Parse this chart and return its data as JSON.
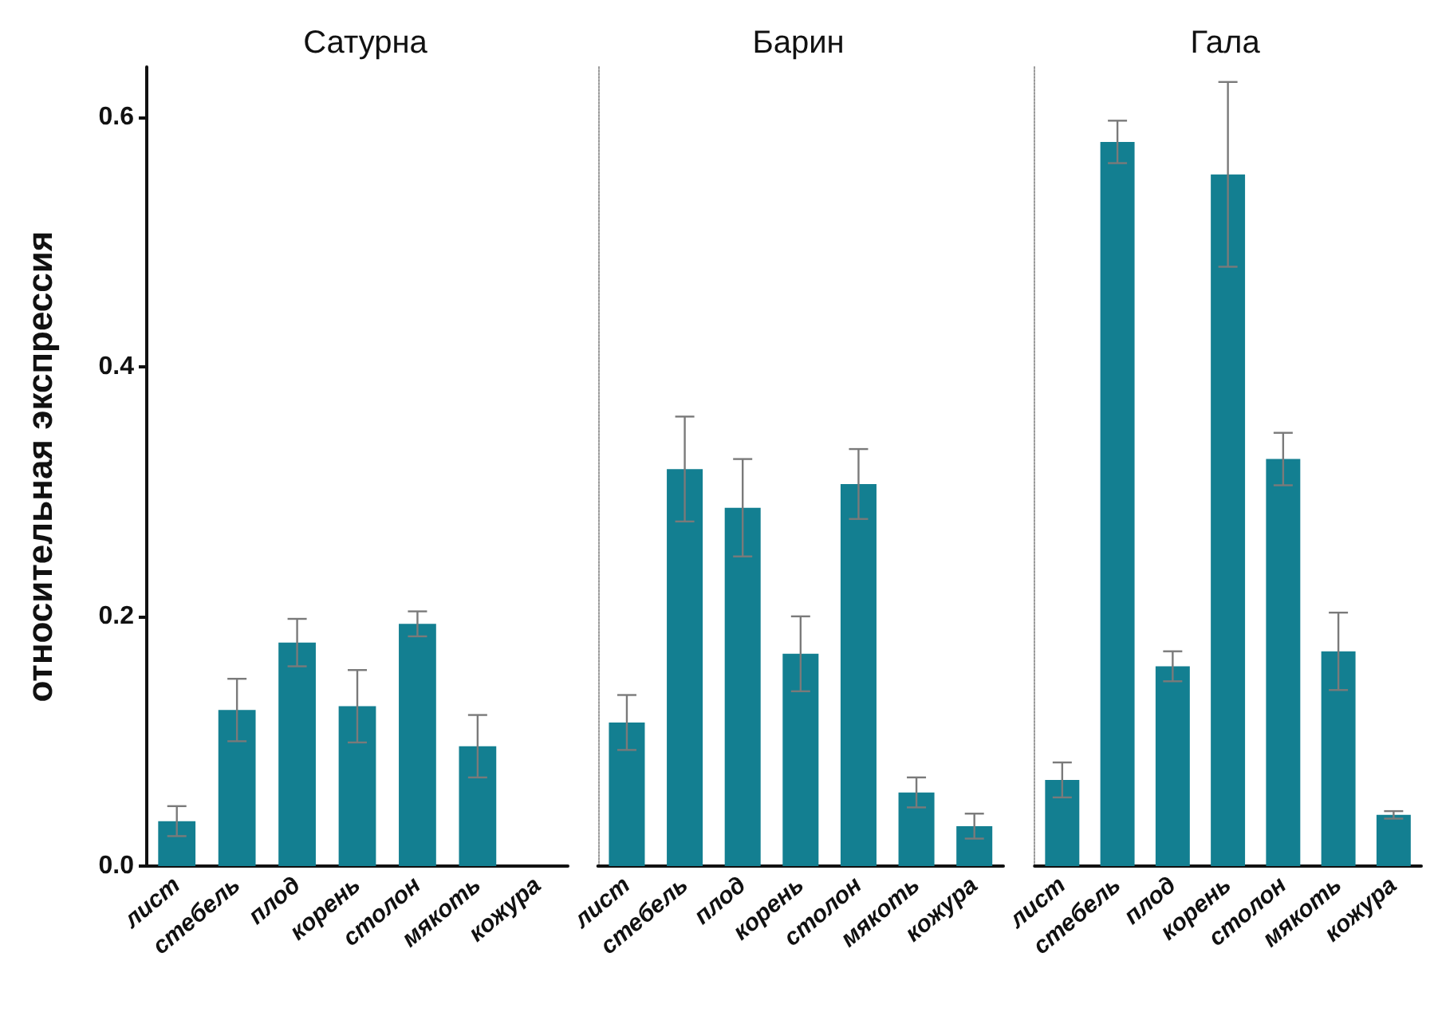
{
  "chart_data": [
    {
      "type": "bar",
      "title": "Сатурна",
      "ylabel": "относительная экспрессия",
      "categories": [
        "лист",
        "стебель",
        "плод",
        "корень",
        "столон",
        "мякоть",
        "кожура"
      ],
      "values": [
        0.036,
        0.125,
        0.179,
        0.128,
        0.194,
        0.096,
        0
      ],
      "errors": [
        0.012,
        0.025,
        0.019,
        0.029,
        0.01,
        0.025,
        null
      ],
      "color": "#137f91",
      "ylim": [
        0,
        0.64
      ],
      "yticks": [
        {
          "value": 0,
          "label": "0.0"
        },
        0.2,
        0.4,
        0.6
      ]
    },
    {
      "type": "bar",
      "title": "Барин",
      "categories": [
        "лист",
        "стебель",
        "плод",
        "корень",
        "столон",
        "мякоть",
        "кожура"
      ],
      "values": [
        0.115,
        0.318,
        0.287,
        0.17,
        0.306,
        0.059,
        0.032
      ],
      "errors": [
        0.022,
        0.042,
        0.039,
        0.03,
        0.028,
        0.012,
        0.01
      ],
      "color": "#137f91",
      "ylim": [
        0,
        0.64
      ],
      "tick_labels": "x"
    },
    {
      "type": "bar",
      "title": "Гала",
      "categories": [
        "лист",
        "стебель",
        "плод",
        "корень",
        "столон",
        "мякоть",
        "кожура"
      ],
      "values": [
        0.069,
        0.58,
        0.16,
        0.554,
        0.326,
        0.172,
        0.041
      ],
      "errors": [
        0.014,
        0.017,
        0.012,
        0.074,
        0.021,
        0.031,
        0.003
      ],
      "color": "#137f91",
      "ylim": [
        0,
        0.64
      ],
      "tick_labels": "x"
    }
  ]
}
